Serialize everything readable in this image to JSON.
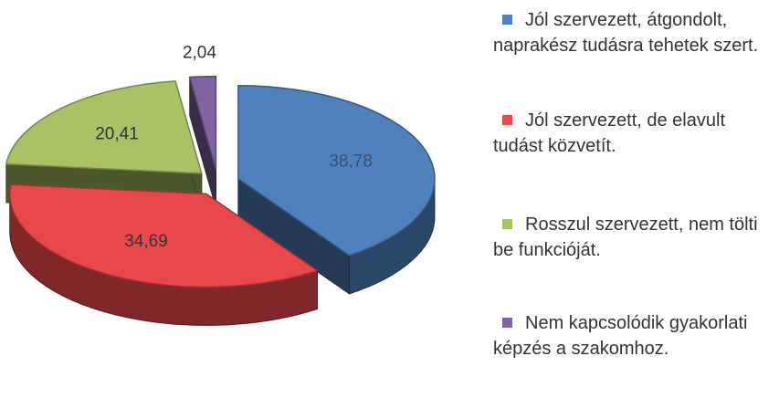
{
  "chart_data": {
    "type": "pie",
    "categories": [
      "Jól szervezett, átgondolt, naprakész tudásra tehetek szert.",
      "Jól szervezett, de elavult tudást közvetít.",
      "Rosszul szervezett, nem tölti be funkcióját.",
      "Nem kapcsolódik gyakorlati képzés a szakomhoz."
    ],
    "values": [
      38.78,
      34.69,
      20.41,
      2.04
    ],
    "value_labels": [
      "38,78",
      "34,69",
      "20,41",
      "2,04"
    ],
    "colors": [
      "#4f81bd",
      "#e8484b",
      "#a9c266",
      "#8064a2"
    ],
    "legend": "right"
  }
}
